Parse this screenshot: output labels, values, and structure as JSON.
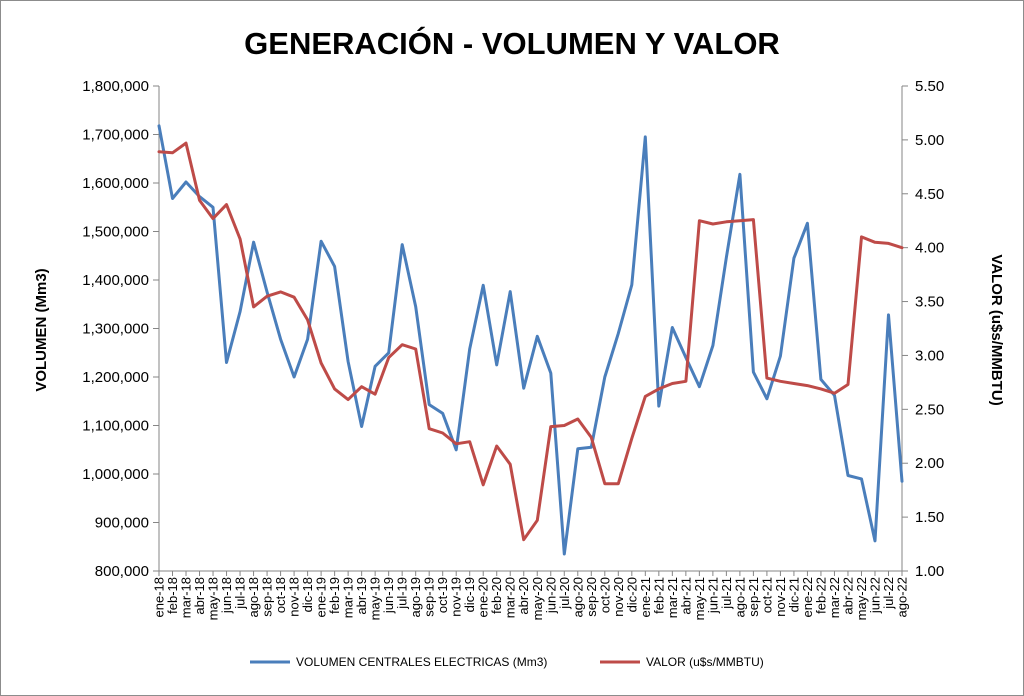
{
  "chart_data": {
    "type": "line",
    "title": "GENERACIÓN - VOLUMEN Y VALOR",
    "ylabel": "VOLUMEN (Mm3)",
    "y2label": "VALOR (u$s/MMBTU)",
    "ylim": [
      800000,
      1800000
    ],
    "y2lim": [
      1.0,
      5.5
    ],
    "yticks": [
      "800,000",
      "900,000",
      "1,000,000",
      "1,100,000",
      "1,200,000",
      "1,300,000",
      "1,400,000",
      "1,500,000",
      "1,600,000",
      "1,700,000",
      "1,800,000"
    ],
    "y2ticks": [
      "1.00",
      "1.50",
      "2.00",
      "2.50",
      "3.00",
      "3.50",
      "4.00",
      "4.50",
      "5.00",
      "5.50"
    ],
    "categories": [
      "ene-18",
      "feb-18",
      "mar-18",
      "abr-18",
      "may-18",
      "jun-18",
      "jul-18",
      "ago-18",
      "sep-18",
      "oct-18",
      "nov-18",
      "dic-18",
      "ene-19",
      "feb-19",
      "mar-19",
      "abr-19",
      "may-19",
      "jun-19",
      "jul-19",
      "ago-19",
      "sep-19",
      "oct-19",
      "nov-19",
      "dic-19",
      "ene-20",
      "feb-20",
      "mar-20",
      "abr-20",
      "may-20",
      "jun-20",
      "jul-20",
      "ago-20",
      "sep-20",
      "oct-20",
      "nov-20",
      "dic-20",
      "ene-21",
      "feb-21",
      "mar-21",
      "abr-21",
      "may-21",
      "jun-21",
      "jul-21",
      "ago-21",
      "sep-21",
      "oct-21",
      "nov-21",
      "dic-21",
      "ene-22",
      "feb-22",
      "mar-22",
      "abr-22",
      "may-22",
      "jun-22",
      "jul-22",
      "ago-22"
    ],
    "series": [
      {
        "name": "VOLUMEN CENTRALES ELECTRICAS (Mm3)",
        "axis": "left",
        "color": "#4a7ebb",
        "values": [
          1718000,
          1568000,
          1602000,
          1572000,
          1550000,
          1230000,
          1335000,
          1478000,
          1375000,
          1278000,
          1200000,
          1278000,
          1480000,
          1428000,
          1232000,
          1098000,
          1222000,
          1250000,
          1473000,
          1345000,
          1143000,
          1125000,
          1050000,
          1258000,
          1389000,
          1225000,
          1376000,
          1177000,
          1284000,
          1208000,
          835000,
          1052000,
          1055000,
          1200000,
          1290000,
          1390000,
          1695000,
          1140000,
          1302000,
          1240000,
          1180000,
          1265000,
          1447000,
          1618000,
          1210000,
          1155000,
          1243000,
          1445000,
          1517000,
          1195000,
          1162000,
          997000,
          990000,
          862000,
          1328000,
          985000
        ]
      },
      {
        "name": "VALOR (u$s/MMBTU)",
        "axis": "right",
        "color": "#be4b48",
        "values": [
          4.89,
          4.88,
          4.97,
          4.44,
          4.27,
          4.4,
          4.08,
          3.45,
          3.55,
          3.59,
          3.54,
          3.33,
          2.93,
          2.69,
          2.59,
          2.71,
          2.64,
          2.98,
          3.1,
          3.06,
          2.32,
          2.28,
          2.18,
          2.2,
          1.8,
          2.16,
          1.99,
          1.29,
          1.47,
          2.34,
          2.35,
          2.41,
          2.24,
          1.81,
          1.81,
          2.23,
          2.62,
          2.69,
          2.74,
          2.76,
          4.25,
          4.22,
          4.24,
          4.25,
          4.26,
          2.79,
          2.76,
          2.74,
          2.72,
          2.69,
          2.65,
          2.73,
          4.1,
          4.05,
          4.04,
          4.0
        ]
      }
    ]
  }
}
